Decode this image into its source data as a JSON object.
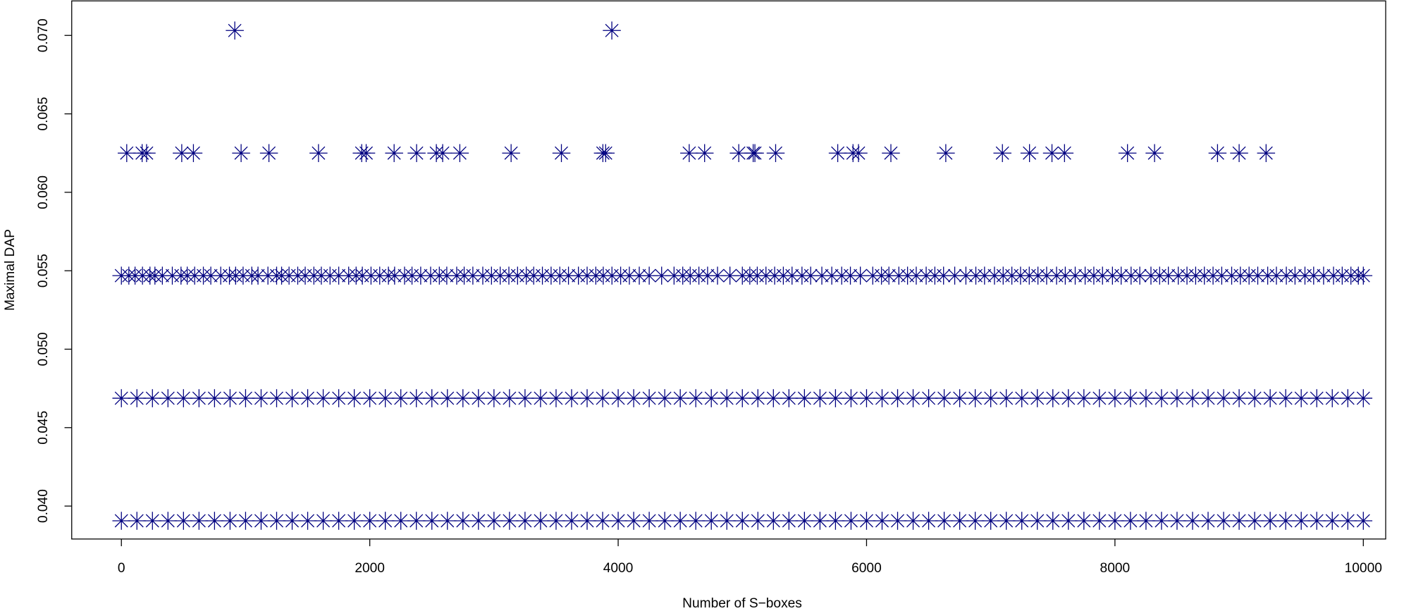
{
  "chart_data": {
    "type": "scatter",
    "x_label": "Number of S−boxes",
    "y_label": "Maximal DAP",
    "xlim": [
      -400,
      10180
    ],
    "ylim": [
      0.0379,
      0.0722
    ],
    "xticks": [
      0,
      2000,
      4000,
      6000,
      8000,
      10000
    ],
    "yticks": [
      {
        "value": 0.04,
        "label": "0.040"
      },
      {
        "value": 0.045,
        "label": "0.045"
      },
      {
        "value": 0.05,
        "label": "0.050"
      },
      {
        "value": 0.055,
        "label": "0.055"
      },
      {
        "value": 0.06,
        "label": "0.060"
      },
      {
        "value": 0.065,
        "label": "0.065"
      },
      {
        "value": 0.07,
        "label": "0.070"
      }
    ],
    "marker": "asterisk",
    "series": [
      {
        "color": "#000080",
        "x": [
          0,
          125,
          250,
          375,
          500,
          625,
          750,
          875,
          1000,
          1125,
          1250,
          1375,
          1500,
          1625,
          1750,
          1875,
          2000,
          2125,
          2250,
          2375,
          2500,
          2625,
          2750,
          2875,
          3000,
          3125,
          3250,
          3375,
          3500,
          3625,
          3750,
          3875,
          4000,
          4125,
          4250,
          4375,
          4500,
          4625,
          4750,
          4875,
          5000,
          5125,
          5250,
          5375,
          5500,
          5625,
          5750,
          5875,
          6000,
          6125,
          6250,
          6375,
          6500,
          6625,
          6750,
          6875,
          7000,
          7125,
          7250,
          7375,
          7500,
          7625,
          7750,
          7875,
          8000,
          8125,
          8250,
          8375,
          8500,
          8625,
          8750,
          8875,
          9000,
          9125,
          9250,
          9375,
          9500,
          9625,
          9750,
          9875,
          10000
        ],
        "values": [
          0.0390625,
          0.0390625,
          0.0390625,
          0.0390625,
          0.0390625,
          0.0390625,
          0.0390625,
          0.0390625,
          0.0390625,
          0.0390625,
          0.0390625,
          0.0390625,
          0.0390625,
          0.0390625,
          0.0390625,
          0.0390625,
          0.0390625,
          0.0390625,
          0.0390625,
          0.0390625,
          0.0390625,
          0.0390625,
          0.0390625,
          0.0390625,
          0.0390625,
          0.0390625,
          0.0390625,
          0.0390625,
          0.0390625,
          0.0390625,
          0.0390625,
          0.0390625,
          0.0390625,
          0.0390625,
          0.0390625,
          0.0390625,
          0.0390625,
          0.0390625,
          0.0390625,
          0.0390625,
          0.0390625,
          0.0390625,
          0.0390625,
          0.0390625,
          0.0390625,
          0.0390625,
          0.0390625,
          0.0390625,
          0.0390625,
          0.0390625,
          0.0390625,
          0.0390625,
          0.0390625,
          0.0390625,
          0.0390625,
          0.0390625,
          0.0390625,
          0.0390625,
          0.0390625,
          0.0390625,
          0.0390625,
          0.0390625,
          0.0390625,
          0.0390625,
          0.0390625,
          0.0390625,
          0.0390625,
          0.0390625,
          0.0390625,
          0.0390625,
          0.0390625,
          0.0390625,
          0.0390625,
          0.0390625,
          0.0390625,
          0.0390625,
          0.0390625,
          0.0390625,
          0.0390625,
          0.0390625,
          0.0390625
        ]
      },
      {
        "color": "#000080",
        "x": [
          0,
          125,
          250,
          375,
          500,
          625,
          750,
          875,
          1000,
          1125,
          1250,
          1375,
          1500,
          1625,
          1750,
          1875,
          2000,
          2125,
          2250,
          2375,
          2500,
          2625,
          2750,
          2875,
          3000,
          3125,
          3250,
          3375,
          3500,
          3625,
          3750,
          3875,
          4000,
          4125,
          4250,
          4375,
          4500,
          4625,
          4750,
          4875,
          5000,
          5125,
          5250,
          5375,
          5500,
          5625,
          5750,
          5875,
          6000,
          6125,
          6250,
          6375,
          6500,
          6625,
          6750,
          6875,
          7000,
          7125,
          7250,
          7375,
          7500,
          7625,
          7750,
          7875,
          8000,
          8125,
          8250,
          8375,
          8500,
          8625,
          8750,
          8875,
          9000,
          9125,
          9250,
          9375,
          9500,
          9625,
          9750,
          9875,
          10000
        ],
        "values": [
          0.046875,
          0.046875,
          0.046875,
          0.046875,
          0.046875,
          0.046875,
          0.046875,
          0.046875,
          0.046875,
          0.046875,
          0.046875,
          0.046875,
          0.046875,
          0.046875,
          0.046875,
          0.046875,
          0.046875,
          0.046875,
          0.046875,
          0.046875,
          0.046875,
          0.046875,
          0.046875,
          0.046875,
          0.046875,
          0.046875,
          0.046875,
          0.046875,
          0.046875,
          0.046875,
          0.046875,
          0.046875,
          0.046875,
          0.046875,
          0.046875,
          0.046875,
          0.046875,
          0.046875,
          0.046875,
          0.046875,
          0.046875,
          0.046875,
          0.046875,
          0.046875,
          0.046875,
          0.046875,
          0.046875,
          0.046875,
          0.046875,
          0.046875,
          0.046875,
          0.046875,
          0.046875,
          0.046875,
          0.046875,
          0.046875,
          0.046875,
          0.046875,
          0.046875,
          0.046875,
          0.046875,
          0.046875,
          0.046875,
          0.046875,
          0.046875,
          0.046875,
          0.046875,
          0.046875,
          0.046875,
          0.046875,
          0.046875,
          0.046875,
          0.046875,
          0.046875,
          0.046875,
          0.046875,
          0.046875,
          0.046875,
          0.046875,
          0.046875,
          0.046875
        ]
      },
      {
        "color": "#000080",
        "x": [
          0,
          60,
          110,
          170,
          230,
          270,
          330,
          410,
          480,
          530,
          590,
          660,
          720,
          800,
          870,
          920,
          980,
          1050,
          1100,
          1180,
          1250,
          1290,
          1350,
          1420,
          1480,
          1550,
          1610,
          1680,
          1750,
          1830,
          1890,
          1940,
          2010,
          2080,
          2150,
          2200,
          2280,
          2340,
          2410,
          2490,
          2560,
          2620,
          2700,
          2760,
          2830,
          2910,
          2980,
          3050,
          3120,
          3190,
          3260,
          3320,
          3390,
          3460,
          3530,
          3600,
          3680,
          3750,
          3820,
          3880,
          3950,
          4020,
          4090,
          4170,
          4250,
          4350,
          4450,
          4520,
          4580,
          4650,
          4720,
          4800,
          4900,
          5000,
          5060,
          5120,
          5190,
          5260,
          5330,
          5400,
          5480,
          5550,
          5640,
          5720,
          5800,
          5870,
          5950,
          6050,
          6120,
          6180,
          6260,
          6330,
          6400,
          6480,
          6550,
          6620,
          6710,
          6800,
          6880,
          6950,
          7030,
          7100,
          7170,
          7240,
          7310,
          7380,
          7450,
          7530,
          7600,
          7680,
          7760,
          7830,
          7900,
          7980,
          8050,
          8130,
          8200,
          8290,
          8360,
          8430,
          8510,
          8580,
          8650,
          8720,
          8790,
          8860,
          8940,
          9010,
          9080,
          9150,
          9230,
          9300,
          9380,
          9450,
          9530,
          9600,
          9680,
          9760,
          9830,
          9900,
          9960,
          10000
        ],
        "values": [
          0.0546875,
          0.0546875,
          0.0546875,
          0.0546875,
          0.0546875,
          0.0546875,
          0.0546875,
          0.0546875,
          0.0546875,
          0.0546875,
          0.0546875,
          0.0546875,
          0.0546875,
          0.0546875,
          0.0546875,
          0.0546875,
          0.0546875,
          0.0546875,
          0.0546875,
          0.0546875,
          0.0546875,
          0.0546875,
          0.0546875,
          0.0546875,
          0.0546875,
          0.0546875,
          0.0546875,
          0.0546875,
          0.0546875,
          0.0546875,
          0.0546875,
          0.0546875,
          0.0546875,
          0.0546875,
          0.0546875,
          0.0546875,
          0.0546875,
          0.0546875,
          0.0546875,
          0.0546875,
          0.0546875,
          0.0546875,
          0.0546875,
          0.0546875,
          0.0546875,
          0.0546875,
          0.0546875,
          0.0546875,
          0.0546875,
          0.0546875,
          0.0546875,
          0.0546875,
          0.0546875,
          0.0546875,
          0.0546875,
          0.0546875,
          0.0546875,
          0.0546875,
          0.0546875,
          0.0546875,
          0.0546875,
          0.0546875,
          0.0546875,
          0.0546875,
          0.0546875,
          0.0546875,
          0.0546875,
          0.0546875,
          0.0546875,
          0.0546875,
          0.0546875,
          0.0546875,
          0.0546875,
          0.0546875,
          0.0546875,
          0.0546875,
          0.0546875,
          0.0546875,
          0.0546875,
          0.0546875,
          0.0546875,
          0.0546875,
          0.0546875,
          0.0546875,
          0.0546875,
          0.0546875,
          0.0546875,
          0.0546875,
          0.0546875,
          0.0546875,
          0.0546875,
          0.0546875,
          0.0546875,
          0.0546875,
          0.0546875,
          0.0546875,
          0.0546875,
          0.0546875,
          0.0546875,
          0.0546875,
          0.0546875,
          0.0546875,
          0.0546875,
          0.0546875,
          0.0546875,
          0.0546875,
          0.0546875,
          0.0546875,
          0.0546875,
          0.0546875,
          0.0546875,
          0.0546875,
          0.0546875,
          0.0546875,
          0.0546875,
          0.0546875,
          0.0546875,
          0.0546875,
          0.0546875,
          0.0546875,
          0.0546875,
          0.0546875,
          0.0546875,
          0.0546875,
          0.0546875,
          0.0546875,
          0.0546875,
          0.0546875,
          0.0546875,
          0.0546875,
          0.0546875,
          0.0546875,
          0.0546875,
          0.0546875,
          0.0546875,
          0.0546875,
          0.0546875,
          0.0546875,
          0.0546875,
          0.0546875,
          0.0546875,
          0.0546875
        ]
      },
      {
        "color": "#000080",
        "x": [
          43,
          167,
          203,
          486,
          580,
          964,
          1188,
          1587,
          1935,
          1971,
          2196,
          2377,
          2536,
          2587,
          2725,
          3138,
          3543,
          3877,
          3899,
          4572,
          4696,
          4971,
          5087,
          5101,
          5268,
          5768,
          5891,
          5935,
          6196,
          6638,
          7094,
          7312,
          7493,
          7594,
          8101,
          8319,
          8826,
          9000,
          9217
        ],
        "values": [
          0.0625,
          0.0625,
          0.0625,
          0.0625,
          0.0625,
          0.0625,
          0.0625,
          0.0625,
          0.0625,
          0.0625,
          0.0625,
          0.0625,
          0.0625,
          0.0625,
          0.0625,
          0.0625,
          0.0625,
          0.0625,
          0.0625,
          0.0625,
          0.0625,
          0.0625,
          0.0625,
          0.0625,
          0.0625,
          0.0625,
          0.0625,
          0.0625,
          0.0625,
          0.0625,
          0.0625,
          0.0625,
          0.0625,
          0.0625,
          0.0625,
          0.0625,
          0.0625,
          0.0625,
          0.0625
        ]
      },
      {
        "color": "#000080",
        "x": [
          913,
          3949
        ],
        "values": [
          0.0703125,
          0.0703125
        ]
      }
    ]
  }
}
